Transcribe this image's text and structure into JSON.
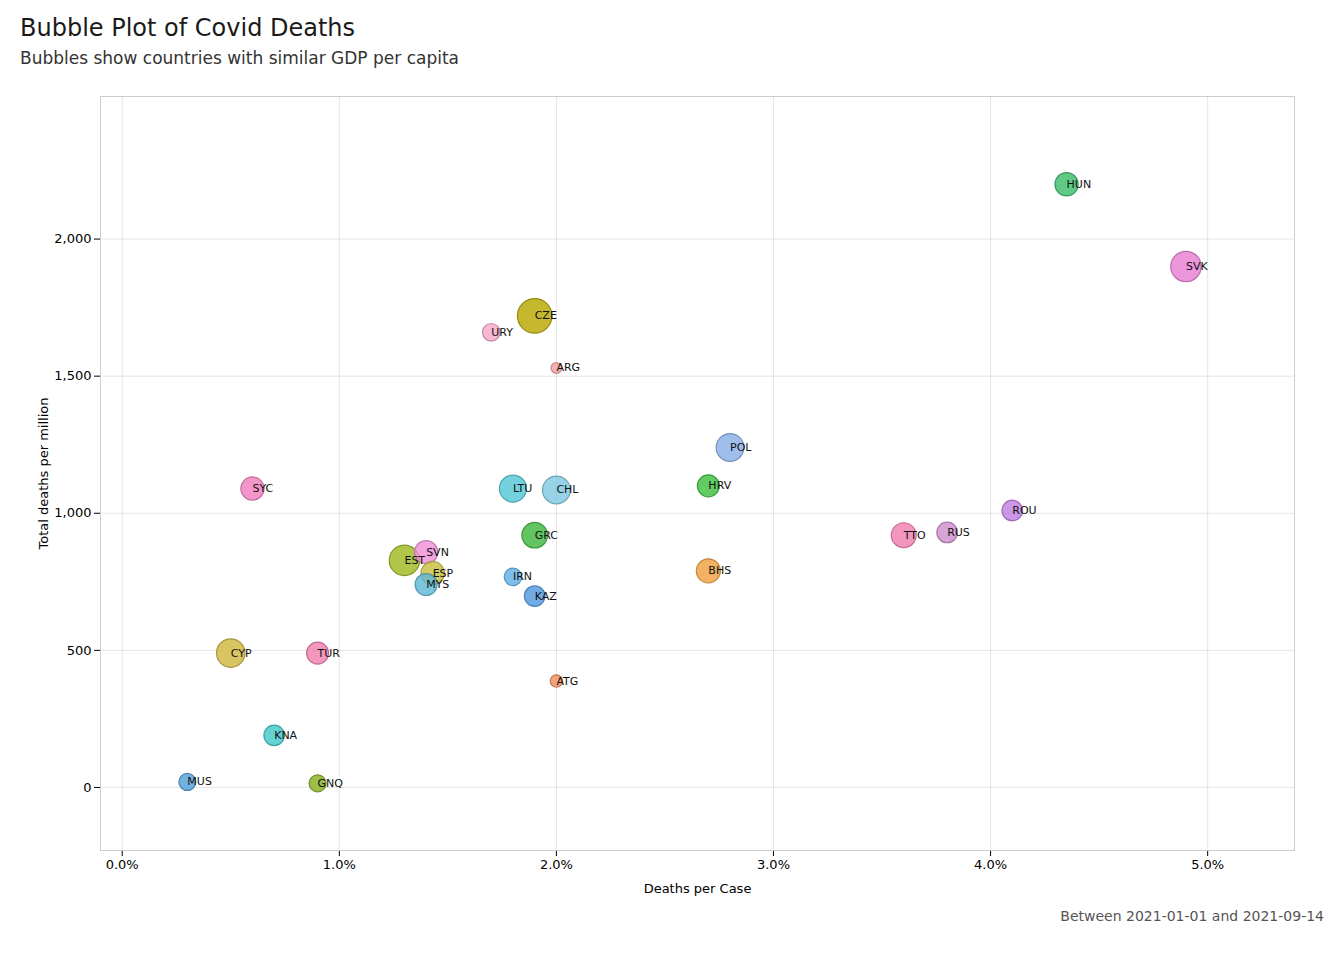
{
  "chart_data": {
    "type": "scatter",
    "title": "Bubble Plot of Covid Deaths",
    "subtitle": "Bubbles show countries with similar GDP per capita",
    "xlabel": "Deaths per Case",
    "ylabel": "Total deaths per million",
    "annotation": "Between 2021-01-01 and 2021-09-14",
    "labels": [
      "HUN",
      "SVK",
      "CZE",
      "URY",
      "ARG",
      "POL",
      "SYC",
      "LTU",
      "CHL",
      "HRV",
      "SVN",
      "EST",
      "GRC",
      "ESP",
      "MYS",
      "IRN",
      "KAZ",
      "TTO",
      "RUS",
      "ROU",
      "BHS",
      "CYP",
      "TUR",
      "ATG",
      "KNA",
      "MUS",
      "GNQ"
    ],
    "x": [
      0.0435,
      0.049,
      0.019,
      0.017,
      0.02,
      0.028,
      0.006,
      0.018,
      0.02,
      0.027,
      0.014,
      0.013,
      0.019,
      0.0143,
      0.014,
      0.018,
      0.019,
      0.036,
      0.038,
      0.041,
      0.027,
      0.005,
      0.009,
      0.02,
      0.007,
      0.003,
      0.009
    ],
    "values": [
      2200,
      1900,
      1720,
      1660,
      1530,
      1240,
      1090,
      1090,
      1085,
      1100,
      858,
      828,
      920,
      782,
      740,
      768,
      698,
      920,
      930,
      1010,
      790,
      490,
      490,
      388,
      190,
      20,
      15
    ],
    "sizes": [
      280,
      480,
      620,
      160,
      60,
      400,
      280,
      380,
      400,
      250,
      280,
      480,
      340,
      280,
      250,
      160,
      220,
      320,
      220,
      220,
      300,
      420,
      250,
      80,
      220,
      150,
      150
    ],
    "colors": [
      "#3dbd6e",
      "#e87fd4",
      "#b8a800",
      "#f4a8c8",
      "#f5a0a0",
      "#8ab0e8",
      "#f080c0",
      "#55c8d8",
      "#80c8e0",
      "#40c040",
      "#f090d8",
      "#a0b820",
      "#40b840",
      "#c8c040",
      "#60b8d8",
      "#60b0e8",
      "#5098e0",
      "#f080b0",
      "#d090d0",
      "#c080e0",
      "#f0a040",
      "#d0b840",
      "#f080b0",
      "#f09060",
      "#40c8c8",
      "#50a0d8",
      "#88b020"
    ],
    "xlim": [
      -0.001,
      0.054
    ],
    "ylim": [
      -230,
      2520
    ],
    "xticks": [
      {
        "value": 0.0,
        "label": "0.0%"
      },
      {
        "value": 0.01,
        "label": "1.0%"
      },
      {
        "value": 0.02,
        "label": "2.0%"
      },
      {
        "value": 0.03,
        "label": "3.0%"
      },
      {
        "value": 0.04,
        "label": "4.0%"
      },
      {
        "value": 0.05,
        "label": "5.0%"
      }
    ],
    "yticks": [
      0,
      500,
      {
        "value": 1000,
        "label": "1,000"
      },
      {
        "value": 1500,
        "label": "1,500"
      },
      {
        "value": 2000,
        "label": "2,000"
      }
    ],
    "grid": true
  }
}
